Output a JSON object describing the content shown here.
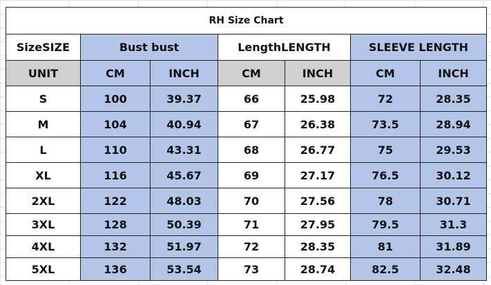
{
  "title": "RH Size Chart",
  "header": [
    "SizeSIZE",
    "Bust bust",
    "LengthLENGTH",
    "SLEEVE LENGTH"
  ],
  "units": [
    "UNIT",
    "CM",
    "INCH",
    "CM",
    "INCH",
    "CM",
    "INCH"
  ],
  "rows": [
    [
      "S",
      100,
      39.37,
      66,
      25.98,
      72,
      28.35
    ],
    [
      "M",
      104,
      40.94,
      67,
      26.38,
      73.5,
      28.94
    ],
    [
      "L",
      110,
      43.31,
      68,
      26.77,
      75,
      29.53
    ],
    [
      "XL",
      116,
      45.67,
      69,
      27.17,
      76.5,
      30.12
    ],
    [
      "2XL",
      122,
      48.03,
      70,
      27.56,
      78,
      30.71
    ],
    [
      "3XL",
      128,
      50.39,
      71,
      27.95,
      79.5,
      31.3
    ],
    [
      "4XL",
      132,
      51.97,
      72,
      28.35,
      81,
      31.89
    ],
    [
      "5XL",
      136,
      53.54,
      73,
      28.74,
      82.5,
      32.48
    ]
  ]
}
